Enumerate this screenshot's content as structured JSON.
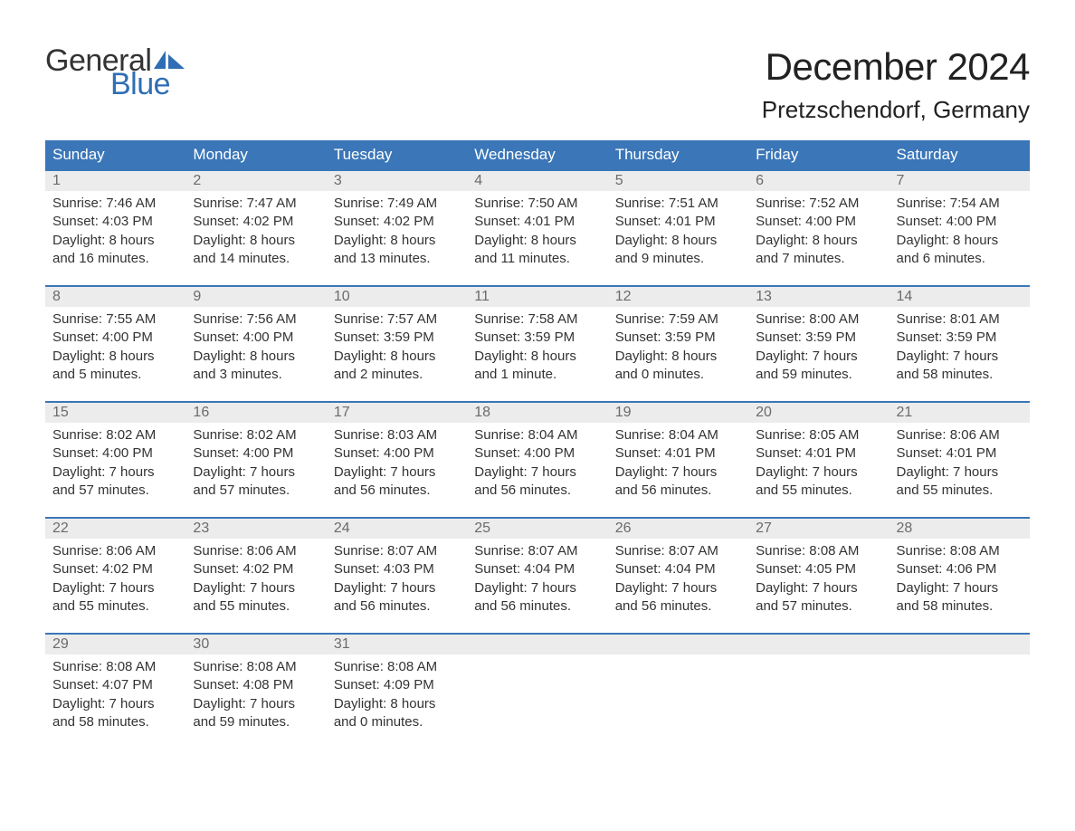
{
  "logo": {
    "word1": "General",
    "word2": "Blue",
    "text_color": "#333333",
    "accent_color": "#2f6eb5"
  },
  "header": {
    "month_year": "December 2024",
    "location": "Pretzschendorf, Germany"
  },
  "styling": {
    "header_bg": "#3a76b8",
    "header_fg": "#ffffff",
    "daynum_bg": "#ececec",
    "daynum_fg": "#6b6b6b",
    "row_border": "#3a76b8",
    "body_bg": "#ffffff",
    "text_color": "#333333",
    "month_title_fontsize": 42,
    "location_fontsize": 26,
    "header_fontsize": 17,
    "cell_fontsize": 15
  },
  "weekday_labels": [
    "Sunday",
    "Monday",
    "Tuesday",
    "Wednesday",
    "Thursday",
    "Friday",
    "Saturday"
  ],
  "weeks": [
    [
      {
        "n": "1",
        "sunrise": "Sunrise: 7:46 AM",
        "sunset": "Sunset: 4:03 PM",
        "daylight": "Daylight: 8 hours and 16 minutes."
      },
      {
        "n": "2",
        "sunrise": "Sunrise: 7:47 AM",
        "sunset": "Sunset: 4:02 PM",
        "daylight": "Daylight: 8 hours and 14 minutes."
      },
      {
        "n": "3",
        "sunrise": "Sunrise: 7:49 AM",
        "sunset": "Sunset: 4:02 PM",
        "daylight": "Daylight: 8 hours and 13 minutes."
      },
      {
        "n": "4",
        "sunrise": "Sunrise: 7:50 AM",
        "sunset": "Sunset: 4:01 PM",
        "daylight": "Daylight: 8 hours and 11 minutes."
      },
      {
        "n": "5",
        "sunrise": "Sunrise: 7:51 AM",
        "sunset": "Sunset: 4:01 PM",
        "daylight": "Daylight: 8 hours and 9 minutes."
      },
      {
        "n": "6",
        "sunrise": "Sunrise: 7:52 AM",
        "sunset": "Sunset: 4:00 PM",
        "daylight": "Daylight: 8 hours and 7 minutes."
      },
      {
        "n": "7",
        "sunrise": "Sunrise: 7:54 AM",
        "sunset": "Sunset: 4:00 PM",
        "daylight": "Daylight: 8 hours and 6 minutes."
      }
    ],
    [
      {
        "n": "8",
        "sunrise": "Sunrise: 7:55 AM",
        "sunset": "Sunset: 4:00 PM",
        "daylight": "Daylight: 8 hours and 5 minutes."
      },
      {
        "n": "9",
        "sunrise": "Sunrise: 7:56 AM",
        "sunset": "Sunset: 4:00 PM",
        "daylight": "Daylight: 8 hours and 3 minutes."
      },
      {
        "n": "10",
        "sunrise": "Sunrise: 7:57 AM",
        "sunset": "Sunset: 3:59 PM",
        "daylight": "Daylight: 8 hours and 2 minutes."
      },
      {
        "n": "11",
        "sunrise": "Sunrise: 7:58 AM",
        "sunset": "Sunset: 3:59 PM",
        "daylight": "Daylight: 8 hours and 1 minute."
      },
      {
        "n": "12",
        "sunrise": "Sunrise: 7:59 AM",
        "sunset": "Sunset: 3:59 PM",
        "daylight": "Daylight: 8 hours and 0 minutes."
      },
      {
        "n": "13",
        "sunrise": "Sunrise: 8:00 AM",
        "sunset": "Sunset: 3:59 PM",
        "daylight": "Daylight: 7 hours and 59 minutes."
      },
      {
        "n": "14",
        "sunrise": "Sunrise: 8:01 AM",
        "sunset": "Sunset: 3:59 PM",
        "daylight": "Daylight: 7 hours and 58 minutes."
      }
    ],
    [
      {
        "n": "15",
        "sunrise": "Sunrise: 8:02 AM",
        "sunset": "Sunset: 4:00 PM",
        "daylight": "Daylight: 7 hours and 57 minutes."
      },
      {
        "n": "16",
        "sunrise": "Sunrise: 8:02 AM",
        "sunset": "Sunset: 4:00 PM",
        "daylight": "Daylight: 7 hours and 57 minutes."
      },
      {
        "n": "17",
        "sunrise": "Sunrise: 8:03 AM",
        "sunset": "Sunset: 4:00 PM",
        "daylight": "Daylight: 7 hours and 56 minutes."
      },
      {
        "n": "18",
        "sunrise": "Sunrise: 8:04 AM",
        "sunset": "Sunset: 4:00 PM",
        "daylight": "Daylight: 7 hours and 56 minutes."
      },
      {
        "n": "19",
        "sunrise": "Sunrise: 8:04 AM",
        "sunset": "Sunset: 4:01 PM",
        "daylight": "Daylight: 7 hours and 56 minutes."
      },
      {
        "n": "20",
        "sunrise": "Sunrise: 8:05 AM",
        "sunset": "Sunset: 4:01 PM",
        "daylight": "Daylight: 7 hours and 55 minutes."
      },
      {
        "n": "21",
        "sunrise": "Sunrise: 8:06 AM",
        "sunset": "Sunset: 4:01 PM",
        "daylight": "Daylight: 7 hours and 55 minutes."
      }
    ],
    [
      {
        "n": "22",
        "sunrise": "Sunrise: 8:06 AM",
        "sunset": "Sunset: 4:02 PM",
        "daylight": "Daylight: 7 hours and 55 minutes."
      },
      {
        "n": "23",
        "sunrise": "Sunrise: 8:06 AM",
        "sunset": "Sunset: 4:02 PM",
        "daylight": "Daylight: 7 hours and 55 minutes."
      },
      {
        "n": "24",
        "sunrise": "Sunrise: 8:07 AM",
        "sunset": "Sunset: 4:03 PM",
        "daylight": "Daylight: 7 hours and 56 minutes."
      },
      {
        "n": "25",
        "sunrise": "Sunrise: 8:07 AM",
        "sunset": "Sunset: 4:04 PM",
        "daylight": "Daylight: 7 hours and 56 minutes."
      },
      {
        "n": "26",
        "sunrise": "Sunrise: 8:07 AM",
        "sunset": "Sunset: 4:04 PM",
        "daylight": "Daylight: 7 hours and 56 minutes."
      },
      {
        "n": "27",
        "sunrise": "Sunrise: 8:08 AM",
        "sunset": "Sunset: 4:05 PM",
        "daylight": "Daylight: 7 hours and 57 minutes."
      },
      {
        "n": "28",
        "sunrise": "Sunrise: 8:08 AM",
        "sunset": "Sunset: 4:06 PM",
        "daylight": "Daylight: 7 hours and 58 minutes."
      }
    ],
    [
      {
        "n": "29",
        "sunrise": "Sunrise: 8:08 AM",
        "sunset": "Sunset: 4:07 PM",
        "daylight": "Daylight: 7 hours and 58 minutes."
      },
      {
        "n": "30",
        "sunrise": "Sunrise: 8:08 AM",
        "sunset": "Sunset: 4:08 PM",
        "daylight": "Daylight: 7 hours and 59 minutes."
      },
      {
        "n": "31",
        "sunrise": "Sunrise: 8:08 AM",
        "sunset": "Sunset: 4:09 PM",
        "daylight": "Daylight: 8 hours and 0 minutes."
      },
      null,
      null,
      null,
      null
    ]
  ]
}
